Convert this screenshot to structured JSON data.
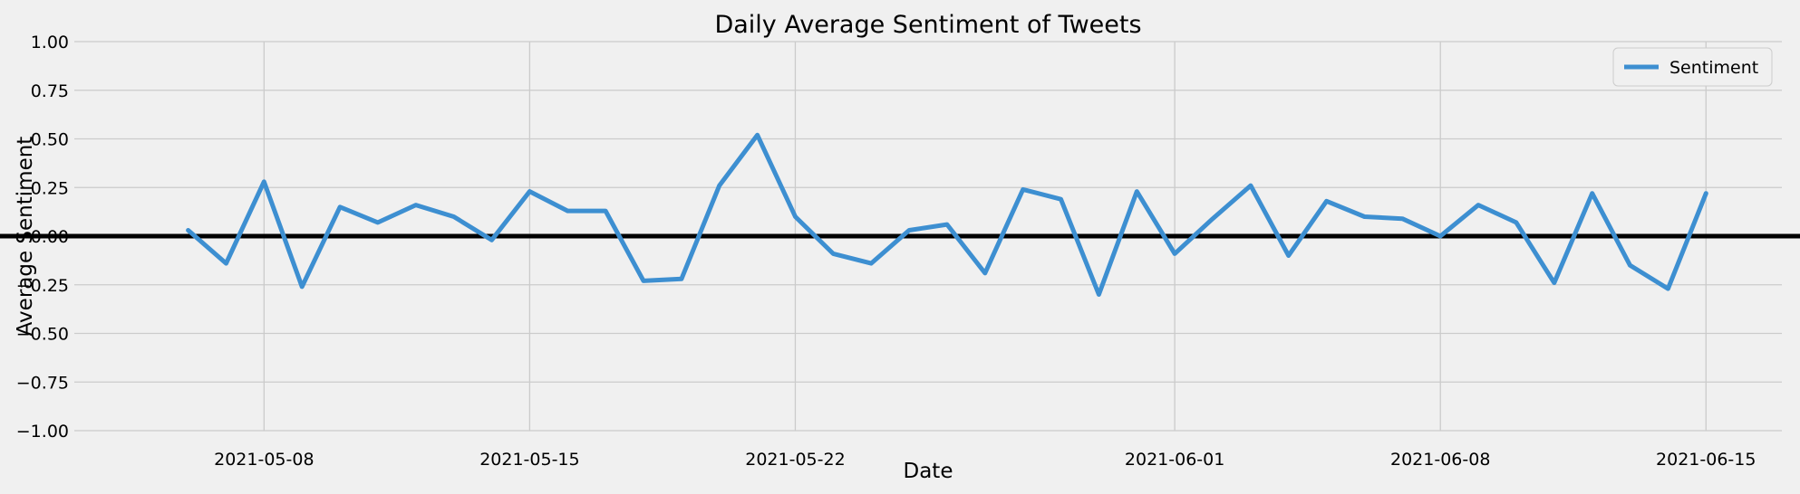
{
  "chart_data": {
    "type": "line",
    "title": "Daily Average Sentiment of Tweets",
    "xlabel": "Date",
    "ylabel": "Average Sentiment",
    "ylim": [
      -1.0,
      1.0
    ],
    "xlim": [
      "2021-05-03",
      "2021-06-17"
    ],
    "x_ticks": [
      "2021-05-08",
      "2021-05-15",
      "2021-05-22",
      "2021-06-01",
      "2021-06-08",
      "2021-06-15"
    ],
    "y_ticks": [
      "-1.00",
      "-0.75",
      "-0.50",
      "-0.25",
      "0.00",
      "0.25",
      "0.50",
      "0.75",
      "1.00"
    ],
    "grid": true,
    "legend_position": "top-right",
    "reference_line": {
      "y": 0.0,
      "color": "#000000"
    },
    "colors": {
      "background": "#f0f0f0",
      "grid": "#cbcbcb",
      "series": "#3d8fd1"
    },
    "series": [
      {
        "name": "Sentiment",
        "x": [
          "2021-05-06",
          "2021-05-07",
          "2021-05-08",
          "2021-05-09",
          "2021-05-10",
          "2021-05-11",
          "2021-05-12",
          "2021-05-13",
          "2021-05-14",
          "2021-05-15",
          "2021-05-16",
          "2021-05-17",
          "2021-05-18",
          "2021-05-19",
          "2021-05-20",
          "2021-05-21",
          "2021-05-22",
          "2021-05-23",
          "2021-05-24",
          "2021-05-25",
          "2021-05-26",
          "2021-05-27",
          "2021-05-28",
          "2021-05-29",
          "2021-05-30",
          "2021-05-31",
          "2021-06-01",
          "2021-06-02",
          "2021-06-03",
          "2021-06-04",
          "2021-06-05",
          "2021-06-06",
          "2021-06-07",
          "2021-06-08",
          "2021-06-09",
          "2021-06-10",
          "2021-06-11",
          "2021-06-12",
          "2021-06-13",
          "2021-06-14",
          "2021-06-15"
        ],
        "values": [
          0.03,
          -0.14,
          0.28,
          -0.26,
          0.15,
          0.07,
          0.16,
          0.1,
          -0.02,
          0.23,
          0.13,
          0.13,
          -0.23,
          -0.22,
          0.26,
          0.52,
          0.1,
          -0.09,
          -0.14,
          0.03,
          0.06,
          -0.19,
          0.24,
          0.19,
          -0.3,
          0.23,
          -0.09,
          0.09,
          0.26,
          -0.1,
          0.18,
          0.1,
          0.09,
          0.0,
          0.16,
          0.07,
          -0.24,
          0.22,
          -0.15,
          -0.27,
          0.22
        ]
      }
    ]
  }
}
